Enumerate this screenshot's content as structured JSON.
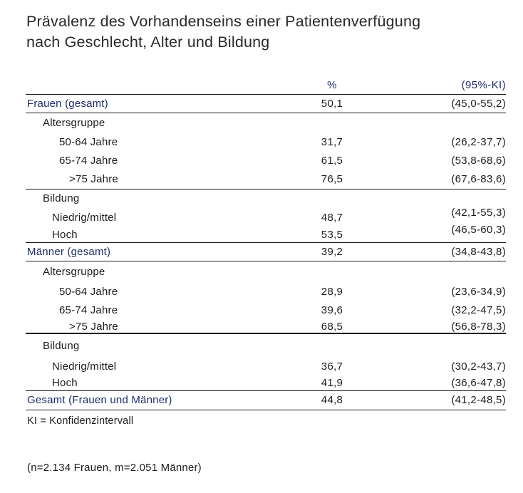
{
  "title": {
    "line1": "Prävalenz des Vorhandenseins einer Patientenverfügung",
    "line2": "nach Geschlecht, Alter und Bildung"
  },
  "colors": {
    "accent_navy": "#1f2d69",
    "text_black": "#1c1c1e",
    "rule": "#1b1b1b",
    "background": "#ffffff"
  },
  "chart_data": {
    "type": "table",
    "title": "Prävalenz des Vorhandenseins einer Patientenverfügung nach Geschlecht, Alter und Bildung",
    "columns": {
      "percent": "%",
      "ci": "(95%-KI)"
    },
    "rows": [
      {
        "label": "Frauen (gesamt)",
        "pct": "50,1",
        "ki": "(45,0-55,2)"
      },
      {
        "label": "Altersgruppe",
        "pct": "",
        "ki": ""
      },
      {
        "label": "50-64 Jahre",
        "pct": "31,7",
        "ki": "(26,2-37,7)"
      },
      {
        "label": "65-74 Jahre",
        "pct": "61,5",
        "ki": "(53,8-68,6)"
      },
      {
        "label": ">75 Jahre",
        "pct": "76,5",
        "ki": "(67,6-83,6)"
      },
      {
        "label": "Bildung",
        "pct": "",
        "ki": ""
      },
      {
        "label": "Niedrig/mittel",
        "pct": "48,7",
        "ki": "(42,1-55,3)"
      },
      {
        "label": "Hoch",
        "pct": "53,5",
        "ki": "(46,5-60,3)"
      },
      {
        "label": "Männer (gesamt)",
        "pct": "39,2",
        "ki": "(34,8-43,8)"
      },
      {
        "label": "Altersgruppe",
        "pct": "",
        "ki": ""
      },
      {
        "label": "50-64 Jahre",
        "pct": "28,9",
        "ki": "(23,6-34,9)"
      },
      {
        "label": "65-74 Jahre",
        "pct": "39,6",
        "ki": "(32,2-47,5)"
      },
      {
        "label": ">75 Jahre",
        "pct": "68,5",
        "ki": "(56,8-78,3)"
      },
      {
        "label": "Bildung",
        "pct": "",
        "ki": ""
      },
      {
        "label": "Niedrig/mittel",
        "pct": "36,7",
        "ki": "(30,2-43,7)"
      },
      {
        "label": "Hoch",
        "pct": "41,9",
        "ki": "(36,6-47,8)"
      },
      {
        "label": "Gesamt (Frauen und Männer)",
        "pct": "44,8",
        "ki": "(41,2-48,5)"
      }
    ],
    "footnotes": {
      "ki": "KI = Konfidenzintervall",
      "sample": "(n=2.134 Frauen, m=2.051 Männer)"
    }
  }
}
